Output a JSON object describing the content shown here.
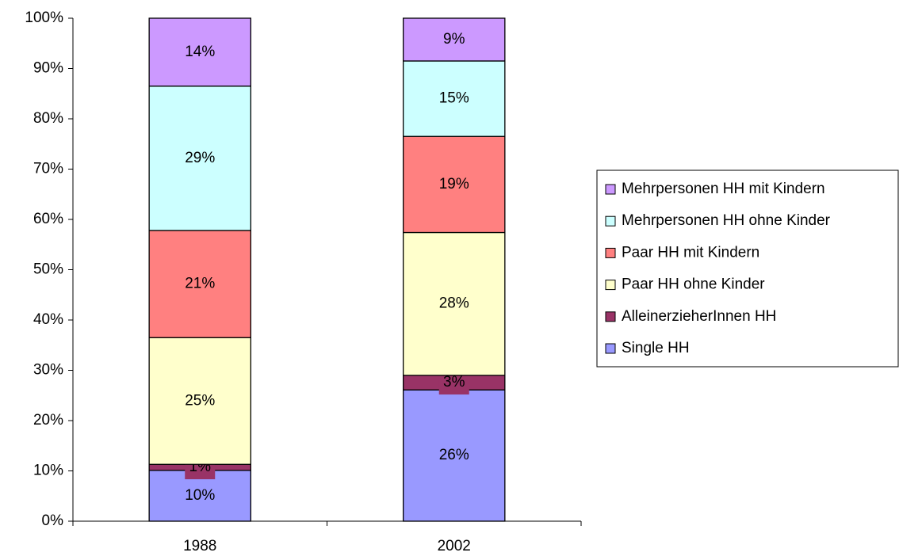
{
  "chart_data": {
    "type": "stacked_bar",
    "categories": [
      "1988",
      "2002"
    ],
    "series": [
      {
        "name": "Single HH",
        "color": "#9999ff",
        "values": [
          10.1,
          26.1
        ],
        "value_labels": [
          "10%",
          "26%"
        ]
      },
      {
        "name": "AlleinerzieherInnen HH",
        "color": "#993366",
        "values": [
          1.2,
          2.9
        ],
        "value_labels": [
          "1%",
          "3%"
        ]
      },
      {
        "name": "Paar HH ohne Kinder",
        "color": "#ffffcc",
        "values": [
          25.2,
          28.4
        ],
        "value_labels": [
          "25%",
          "28%"
        ]
      },
      {
        "name": "Paar HH mit Kindern",
        "color": "#ff8080",
        "values": [
          21.3,
          19.1
        ],
        "value_labels": [
          "21%",
          "19%"
        ]
      },
      {
        "name": "Mehrpersonen HH ohne Kinder",
        "color": "#ccffff",
        "values": [
          28.7,
          15.0
        ],
        "value_labels": [
          "29%",
          "15%"
        ]
      },
      {
        "name": "Mehrpersonen HH mit Kindern",
        "color": "#cc99ff",
        "values": [
          13.5,
          8.5
        ],
        "value_labels": [
          "14%",
          "9%"
        ]
      }
    ],
    "ylim": [
      0,
      100
    ],
    "yticks": [
      {
        "value": 0,
        "label": "0%"
      },
      {
        "value": 10,
        "label": "10%"
      },
      {
        "value": 20,
        "label": "20%"
      },
      {
        "value": 30,
        "label": "30%"
      },
      {
        "value": 40,
        "label": "40%"
      },
      {
        "value": 50,
        "label": "50%"
      },
      {
        "value": 60,
        "label": "60%"
      },
      {
        "value": 70,
        "label": "70%"
      },
      {
        "value": 80,
        "label": "80%"
      },
      {
        "value": 90,
        "label": "90%"
      },
      {
        "value": 100,
        "label": "100%"
      }
    ],
    "legend": "right"
  }
}
